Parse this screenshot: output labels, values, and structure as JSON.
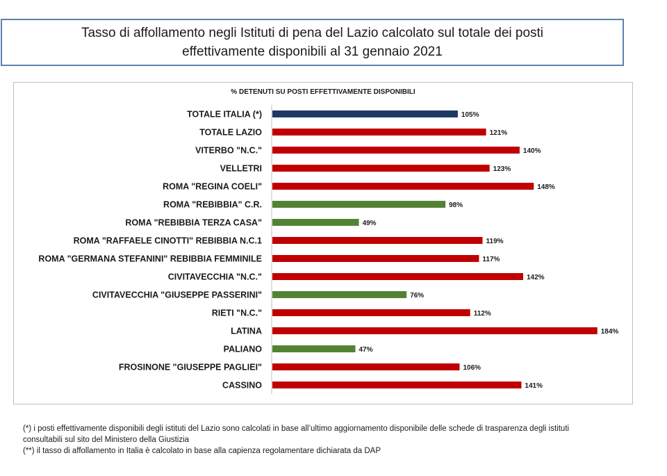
{
  "title": {
    "line1": "Tasso di affollamento negli Istituti di pena del Lazio calcolato sul totale dei posti",
    "line2": "effettivamente disponibili al 31 gennaio 2021"
  },
  "chart_data": {
    "type": "bar",
    "orientation": "horizontal",
    "title": "% DETENUTI SU POSTI EFFETTIVAMENTE DISPONIBILI",
    "categories": [
      "TOTALE ITALIA (*)",
      "TOTALE LAZIO",
      "VITERBO \"N.C.\"",
      "VELLETRI",
      "ROMA \"REGINA COELI\"",
      "ROMA \"REBIBBIA\" C.R.",
      "ROMA \"REBIBBIA TERZA CASA\"",
      "ROMA \"RAFFAELE CINOTTI\" REBIBBIA N.C.1",
      "ROMA \"GERMANA STEFANINI\" REBIBBIA FEMMINILE",
      "CIVITAVECCHIA \"N.C.\"",
      "CIVITAVECCHIA \"GIUSEPPE PASSERINI\"",
      "RIETI \"N.C.\"",
      "LATINA",
      "PALIANO",
      "FROSINONE \"GIUSEPPE PAGLIEI\"",
      "CASSINO"
    ],
    "values": [
      105,
      121,
      140,
      123,
      148,
      98,
      49,
      119,
      117,
      142,
      76,
      112,
      184,
      47,
      106,
      141
    ],
    "value_labels": [
      "105%",
      "121%",
      "140%",
      "123%",
      "148%",
      "98%",
      "49%",
      "119%",
      "117%",
      "142%",
      "76%",
      "112%",
      "184%",
      "47%",
      "106%",
      "141%"
    ],
    "colors": [
      "#1f3864",
      "#c00000",
      "#c00000",
      "#c00000",
      "#c00000",
      "#548235",
      "#548235",
      "#c00000",
      "#c00000",
      "#c00000",
      "#548235",
      "#c00000",
      "#c00000",
      "#548235",
      "#c00000",
      "#c00000"
    ],
    "xlim": [
      0,
      190
    ],
    "grid": false,
    "legend": "none"
  },
  "notes": {
    "line1": "(*) i posti effettivamente disponibili  degli istituti del Lazio sono  calcolati in base all’ultimo aggiornamento disponibile  delle schede  di trasparenza degli istituti",
    "line2": "consultabili  sul sito del Ministero della Giustizia",
    "line3": "(**) il tasso di affollamento  in Italia è calcolato in base alla capienza regolamentare dichiarata da DAP"
  }
}
